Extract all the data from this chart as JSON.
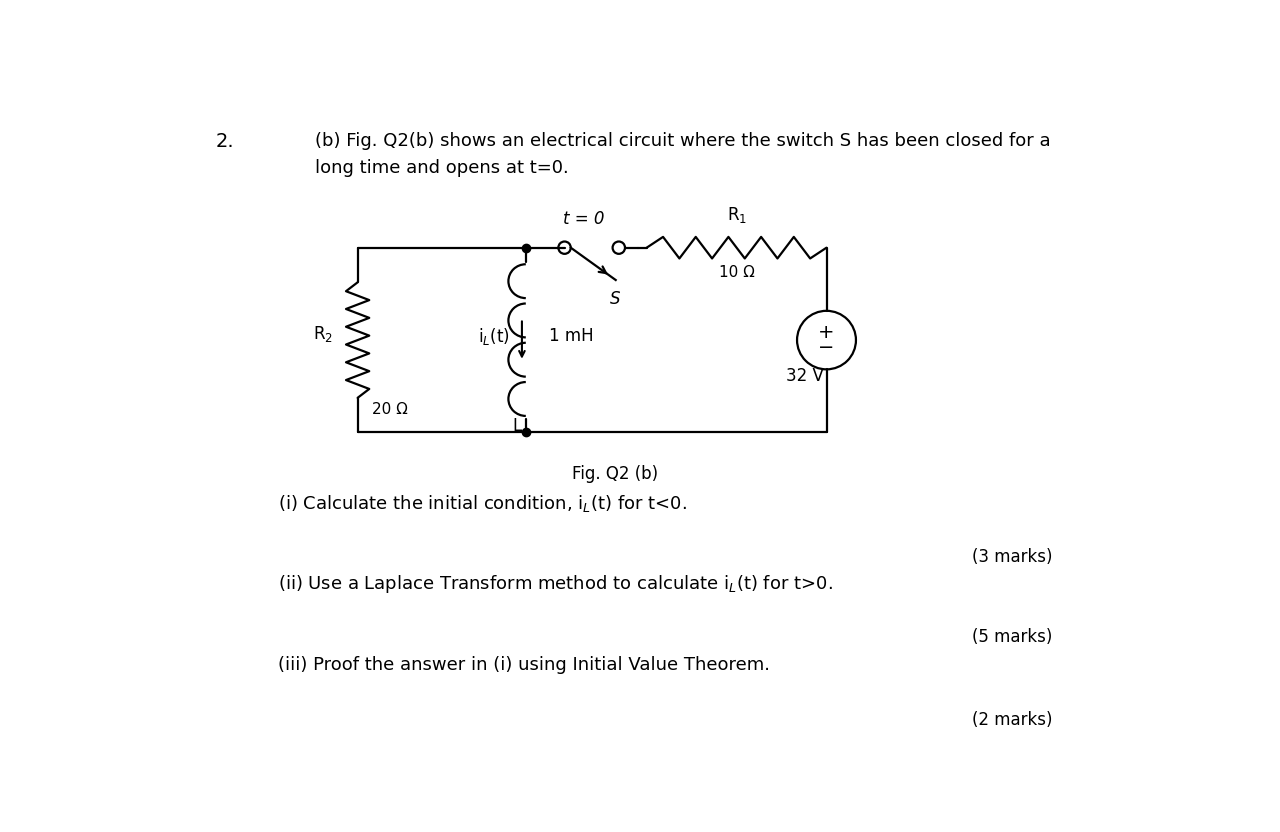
{
  "bg_color": "#ffffff",
  "title_num": "2.",
  "header_text_line1": "(b) Fig. Q2(b) shows an electrical circuit where the switch S has been closed for a",
  "header_text_line2": "long time and opens at t=0.",
  "fig_caption": "Fig. Q2 (b)",
  "q1_text": "(i) Calculate the initial condition, i",
  "q1_sub": "L",
  "q1_rest": "(t) for t<0.",
  "q1_marks": "(3 marks)",
  "q2_text": "(ii) Use a Laplace Transform method to calculate i",
  "q2_sub": "L",
  "q2_rest": "(t) for t>0.",
  "q2_marks": "(5 marks)",
  "q3_text": "(iii) Proof the answer in (i) using Initial Value Theorem.",
  "q3_marks": "(2 marks)",
  "font_size_header": 13,
  "font_size_body": 13,
  "font_size_marks": 12
}
